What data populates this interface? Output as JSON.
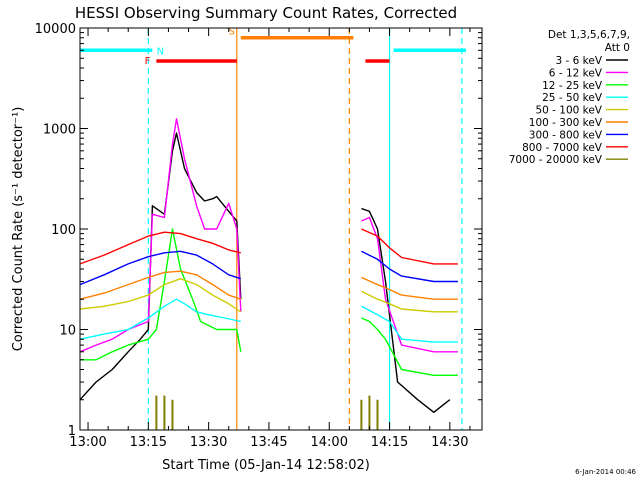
{
  "chart_data": {
    "type": "line",
    "title": "HESSI Observing Summary Count Rates, Corrected",
    "xlabel": "Start Time (05-Jan-14 12:58:02)",
    "ylabel": "Corrected Count Rate (s⁻¹ detector⁻¹)",
    "y_scale": "log",
    "ylim": [
      1,
      10000
    ],
    "xlim": [
      "12:58",
      "14:38"
    ],
    "x_ticks": [
      "13:00",
      "13:15",
      "13:30",
      "13:45",
      "14:00",
      "14:15",
      "14:30"
    ],
    "y_ticks": [
      "1",
      "10",
      "100",
      "1000",
      "10000"
    ],
    "footer_date": "6-Jan-2014 00:46",
    "legend": {
      "title_line1": "Det 1,3,5,6,7,9,",
      "title_line2": "Att 0",
      "placement": "top-right, outside plot"
    },
    "series": [
      {
        "name": "3 - 6 keV",
        "color": "#000000",
        "points": [
          [
            "12:58",
            2
          ],
          [
            "13:02",
            3
          ],
          [
            "13:06",
            4
          ],
          [
            "13:10",
            6
          ],
          [
            "13:13",
            8
          ],
          [
            "13:15",
            10
          ],
          [
            "13:16",
            170
          ],
          [
            "13:19",
            140
          ],
          [
            "13:21",
            600
          ],
          [
            "13:22",
            900
          ],
          [
            "13:24",
            400
          ],
          [
            "13:27",
            230
          ],
          [
            "13:29",
            190
          ],
          [
            "13:31",
            200
          ],
          [
            "13:32",
            210
          ],
          [
            "13:35",
            150
          ],
          [
            "13:37",
            120
          ],
          [
            "13:38",
            20
          ],
          [
            "14:08",
            160
          ],
          [
            "14:10",
            150
          ],
          [
            "14:12",
            100
          ],
          [
            "14:14",
            30
          ],
          [
            "14:17",
            3
          ],
          [
            "14:22",
            2
          ],
          [
            "14:26",
            1.5
          ],
          [
            "14:30",
            2
          ]
        ],
        "gaps": [
          [
            "13:38",
            "14:08"
          ]
        ]
      },
      {
        "name": "6 - 12 keV",
        "color": "#ff00ff",
        "points": [
          [
            "12:58",
            6
          ],
          [
            "13:02",
            7
          ],
          [
            "13:06",
            8
          ],
          [
            "13:10",
            10
          ],
          [
            "13:15",
            12
          ],
          [
            "13:16",
            140
          ],
          [
            "13:19",
            130
          ],
          [
            "13:21",
            700
          ],
          [
            "13:22",
            1250
          ],
          [
            "13:24",
            500
          ],
          [
            "13:27",
            170
          ],
          [
            "13:29",
            100
          ],
          [
            "13:32",
            100
          ],
          [
            "13:35",
            180
          ],
          [
            "13:37",
            100
          ],
          [
            "13:38",
            15
          ],
          [
            "14:08",
            120
          ],
          [
            "14:10",
            130
          ],
          [
            "14:12",
            80
          ],
          [
            "14:14",
            20
          ],
          [
            "14:18",
            7
          ],
          [
            "14:26",
            6
          ],
          [
            "14:32",
            6
          ]
        ],
        "gaps": [
          [
            "13:38",
            "14:08"
          ]
        ]
      },
      {
        "name": "12 - 25 keV",
        "color": "#00ff00",
        "points": [
          [
            "12:58",
            5
          ],
          [
            "13:02",
            5
          ],
          [
            "13:06",
            6
          ],
          [
            "13:10",
            7
          ],
          [
            "13:15",
            8
          ],
          [
            "13:17",
            10
          ],
          [
            "13:19",
            30
          ],
          [
            "13:21",
            100
          ],
          [
            "13:23",
            40
          ],
          [
            "13:26",
            20
          ],
          [
            "13:28",
            12
          ],
          [
            "13:32",
            10
          ],
          [
            "13:37",
            10
          ],
          [
            "13:38",
            6
          ],
          [
            "14:08",
            13
          ],
          [
            "14:10",
            12
          ],
          [
            "14:12",
            10
          ],
          [
            "14:14",
            8
          ],
          [
            "14:18",
            4
          ],
          [
            "14:26",
            3.5
          ],
          [
            "14:32",
            3.5
          ]
        ],
        "gaps": [
          [
            "13:38",
            "14:08"
          ]
        ]
      },
      {
        "name": "25 - 50 keV",
        "color": "#00ffff",
        "points": [
          [
            "12:58",
            8
          ],
          [
            "13:04",
            9
          ],
          [
            "13:10",
            10
          ],
          [
            "13:15",
            13
          ],
          [
            "13:19",
            17
          ],
          [
            "13:22",
            20
          ],
          [
            "13:24",
            18
          ],
          [
            "13:27",
            15
          ],
          [
            "13:30",
            14
          ],
          [
            "13:34",
            13
          ],
          [
            "13:38",
            12
          ],
          [
            "14:08",
            17
          ],
          [
            "14:12",
            14
          ],
          [
            "14:15",
            12
          ],
          [
            "14:18",
            8
          ],
          [
            "14:26",
            7.5
          ],
          [
            "14:32",
            7.5
          ]
        ],
        "gaps": [
          [
            "13:38",
            "14:08"
          ]
        ]
      },
      {
        "name": "50 - 100 keV",
        "color": "#cccc00",
        "points": [
          [
            "12:58",
            16
          ],
          [
            "13:04",
            17
          ],
          [
            "13:10",
            19
          ],
          [
            "13:15",
            22
          ],
          [
            "13:19",
            28
          ],
          [
            "13:23",
            32
          ],
          [
            "13:27",
            28
          ],
          [
            "13:31",
            22
          ],
          [
            "13:35",
            18
          ],
          [
            "13:38",
            15
          ],
          [
            "14:08",
            24
          ],
          [
            "14:12",
            20
          ],
          [
            "14:15",
            18
          ],
          [
            "14:18",
            16
          ],
          [
            "14:26",
            15
          ],
          [
            "14:32",
            15
          ]
        ],
        "gaps": [
          [
            "13:38",
            "14:08"
          ]
        ]
      },
      {
        "name": "100 - 300 keV",
        "color": "#ff8000",
        "points": [
          [
            "12:58",
            20
          ],
          [
            "13:04",
            23
          ],
          [
            "13:10",
            28
          ],
          [
            "13:15",
            33
          ],
          [
            "13:19",
            37
          ],
          [
            "13:23",
            38
          ],
          [
            "13:27",
            35
          ],
          [
            "13:31",
            28
          ],
          [
            "13:35",
            22
          ],
          [
            "13:38",
            20
          ],
          [
            "14:08",
            33
          ],
          [
            "14:12",
            28
          ],
          [
            "14:15",
            25
          ],
          [
            "14:18",
            22
          ],
          [
            "14:26",
            20
          ],
          [
            "14:32",
            20
          ]
        ],
        "gaps": [
          [
            "13:38",
            "14:08"
          ]
        ]
      },
      {
        "name": "300 - 800 keV",
        "color": "#0000ff",
        "points": [
          [
            "12:58",
            28
          ],
          [
            "13:04",
            35
          ],
          [
            "13:10",
            45
          ],
          [
            "13:15",
            53
          ],
          [
            "13:19",
            58
          ],
          [
            "13:23",
            60
          ],
          [
            "13:27",
            55
          ],
          [
            "13:31",
            45
          ],
          [
            "13:35",
            35
          ],
          [
            "13:38",
            32
          ],
          [
            "14:08",
            60
          ],
          [
            "14:12",
            50
          ],
          [
            "14:15",
            40
          ],
          [
            "14:18",
            34
          ],
          [
            "14:26",
            30
          ],
          [
            "14:32",
            30
          ]
        ],
        "gaps": [
          [
            "13:38",
            "14:08"
          ]
        ]
      },
      {
        "name": "800 - 7000 keV",
        "color": "#ff0000",
        "points": [
          [
            "12:58",
            45
          ],
          [
            "13:04",
            55
          ],
          [
            "13:10",
            70
          ],
          [
            "13:15",
            85
          ],
          [
            "13:19",
            93
          ],
          [
            "13:23",
            90
          ],
          [
            "13:27",
            80
          ],
          [
            "13:31",
            72
          ],
          [
            "13:35",
            62
          ],
          [
            "13:38",
            58
          ],
          [
            "14:08",
            100
          ],
          [
            "14:12",
            85
          ],
          [
            "14:15",
            65
          ],
          [
            "14:18",
            52
          ],
          [
            "14:26",
            45
          ],
          [
            "14:32",
            45
          ]
        ],
        "gaps": [
          [
            "13:38",
            "14:08"
          ]
        ]
      },
      {
        "name": "7000 - 20000 keV",
        "color": "#808000",
        "points": [
          [
            "13:16",
            1
          ],
          [
            "13:17",
            2.2
          ],
          [
            "13:18",
            1
          ],
          [
            "13:19",
            2.2
          ],
          [
            "13:20",
            1
          ],
          [
            "13:21",
            2
          ],
          [
            "13:22",
            1
          ],
          [
            "14:07",
            1
          ],
          [
            "14:08",
            2
          ],
          [
            "14:09",
            1
          ],
          [
            "14:10",
            2.2
          ],
          [
            "14:11",
            1
          ],
          [
            "14:12",
            2
          ]
        ],
        "gaps": []
      }
    ],
    "flag_bars": [
      {
        "label": "N",
        "color": "#00ffff",
        "y": 6000,
        "start": "12:58",
        "end": "13:16"
      },
      {
        "label": "",
        "color": "#00ffff",
        "y": 6000,
        "start": "14:16",
        "end": "14:34"
      },
      {
        "label": "F",
        "color": "#ff0000",
        "y": 4700,
        "start": "13:17",
        "end": "13:37"
      },
      {
        "label": "",
        "color": "#ff0000",
        "y": 4700,
        "start": "14:09",
        "end": "14:15"
      },
      {
        "label": "S",
        "color": "#ff8000",
        "y": 8000,
        "start": "13:38",
        "end": "14:06"
      }
    ],
    "markers": [
      {
        "time": "13:15",
        "color": "#00ffff",
        "style": "dashed"
      },
      {
        "time": "13:37",
        "color": "#ff8000",
        "style": "solid"
      },
      {
        "time": "14:05",
        "color": "#ff8000",
        "style": "dashed"
      },
      {
        "time": "14:15",
        "color": "#00ffff",
        "style": "solid"
      },
      {
        "time": "14:33",
        "color": "#00ffff",
        "style": "dashed"
      }
    ]
  }
}
